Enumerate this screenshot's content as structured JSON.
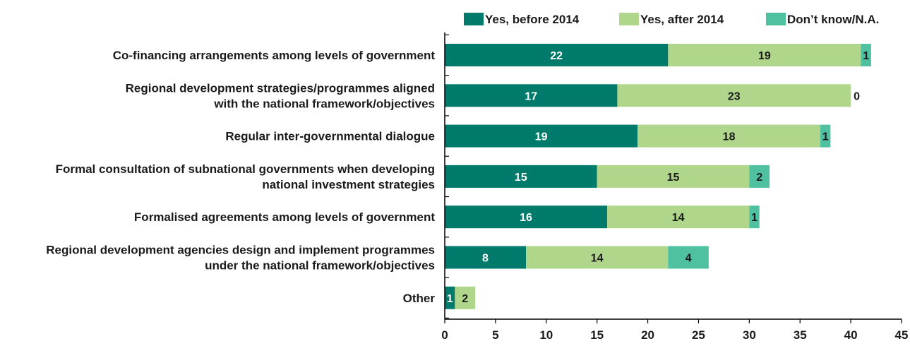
{
  "chart_data": {
    "type": "bar",
    "orientation": "horizontal",
    "stacked": true,
    "categories": [
      [
        "Co-financing arrangements among levels of government"
      ],
      [
        "Regional development strategies/programmes aligned",
        "with the national framework/objectives"
      ],
      [
        "Regular inter-governmental dialogue"
      ],
      [
        "Formal consultation of subnational governments when developing",
        "national investment strategies"
      ],
      [
        "Formalised agreements among levels of government"
      ],
      [
        "Regional development agencies design and implement programmes",
        "under the national framework/objectives"
      ],
      [
        "Other"
      ]
    ],
    "series": [
      {
        "name": "Yes, before 2014",
        "color": "#007a6a",
        "label_color": "#ffffff",
        "values": [
          22,
          17,
          19,
          15,
          16,
          8,
          1
        ],
        "labels": [
          "22",
          "17",
          "19",
          "15",
          "16",
          "8",
          "1"
        ]
      },
      {
        "name": "Yes, after 2014",
        "color": "#b0d68c",
        "label_color": "#1a1a1a",
        "values": [
          19,
          23,
          18,
          15,
          14,
          14,
          2
        ],
        "labels": [
          "19",
          "23",
          "18",
          "15",
          "14",
          "14",
          "2"
        ]
      },
      {
        "name": "Don’t know/N.A.",
        "color": "#4fc0a0",
        "label_color": "#1a1a1a",
        "values": [
          1,
          0,
          1,
          2,
          1,
          4,
          0
        ],
        "labels": [
          "1",
          "0",
          "1",
          "2",
          "1",
          "4",
          ""
        ]
      }
    ],
    "bar_starts": [
      0,
      0,
      0,
      0,
      0,
      2,
      0
    ],
    "xlim": [
      0,
      45
    ],
    "xticks": [
      "0",
      "5",
      "10",
      "15",
      "20",
      "25",
      "30",
      "35",
      "40",
      "45"
    ],
    "xtick_values": [
      0,
      5,
      10,
      15,
      20,
      25,
      30,
      35,
      40,
      45
    ],
    "legend_position": "top",
    "grid": false
  }
}
